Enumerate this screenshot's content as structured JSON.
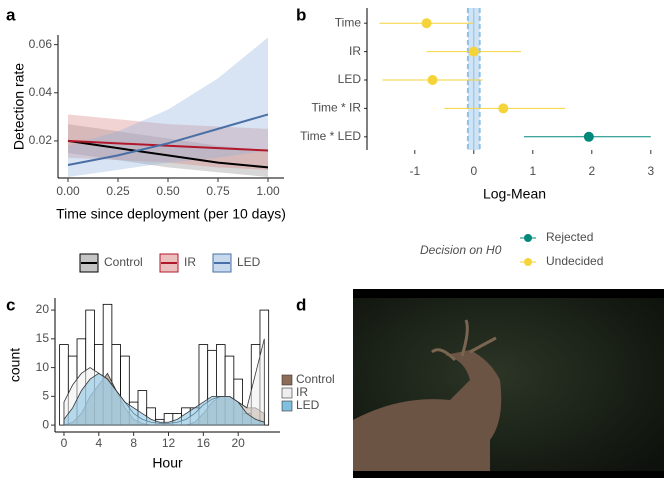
{
  "panels": [
    "a",
    "b",
    "c",
    "d"
  ],
  "chart_data": [
    {
      "type": "line",
      "xlabel": "Time since deployment (per 10 days)",
      "ylabel": "Detection rate",
      "x": [
        0,
        0.25,
        0.5,
        0.75,
        1
      ],
      "xlim": [
        -0.05,
        1.08
      ],
      "ylim": [
        0.0046,
        0.064
      ],
      "xticks": [
        {
          "value": 0,
          "label": "0.00"
        },
        {
          "value": 0.25,
          "label": "0.25"
        },
        {
          "value": 0.5,
          "label": "0.50"
        },
        {
          "value": 0.75,
          "label": "0.75"
        },
        {
          "value": 1,
          "label": "1.00"
        }
      ],
      "yticks": [
        0.02,
        0.04,
        0.06
      ],
      "series": [
        {
          "name": "Control",
          "color": "#000000",
          "fill": "#8c8c8c",
          "values": [
            0.02,
            0.017,
            0.014,
            0.011,
            0.009
          ],
          "lower": [
            0.015,
            0.012,
            0.009,
            0.007,
            0.005
          ],
          "upper": [
            0.027,
            0.024,
            0.021,
            0.018,
            0.016
          ]
        },
        {
          "name": "IR",
          "color": "#b2182b",
          "fill": "#d98080",
          "values": [
            0.02,
            0.019,
            0.018,
            0.017,
            0.016
          ],
          "lower": [
            0.013,
            0.012,
            0.011,
            0.009,
            0.008
          ],
          "upper": [
            0.031,
            0.029,
            0.027,
            0.026,
            0.025
          ]
        },
        {
          "name": "LED",
          "color": "#4a6fa5",
          "fill": "#8fb3dc",
          "values": [
            0.01,
            0.014,
            0.019,
            0.025,
            0.031
          ],
          "lower": [
            0.005,
            0.008,
            0.011,
            0.013,
            0.016
          ],
          "upper": [
            0.018,
            0.024,
            0.033,
            0.046,
            0.063
          ]
        }
      ]
    },
    {
      "type": "dotwhisker",
      "xlabel": "Log-Mean",
      "legend_title": "Decision on H0",
      "categories": [
        "Time",
        "IR",
        "LED",
        "Time * IR",
        "Time * LED"
      ],
      "values": [
        -0.8,
        0,
        -0.7,
        0.5,
        1.95
      ],
      "lower": [
        -1.6,
        -0.8,
        -1.55,
        -0.5,
        0.85
      ],
      "upper": [
        0,
        0.8,
        0.15,
        1.55,
        3.0
      ],
      "decision": [
        "Undecided",
        "Undecided",
        "Undecided",
        "Undecided",
        "Rejected"
      ],
      "series": [
        {
          "name": "Rejected",
          "color": "#00897b"
        },
        {
          "name": "Undecided",
          "color": "#f5d33a"
        }
      ],
      "ref_line": 0,
      "ref_band": [
        -0.1,
        0.1
      ],
      "xlim": [
        -1.81,
        3.19
      ],
      "xticks": [
        -1,
        0,
        1,
        2,
        3
      ]
    },
    {
      "type": "histogram",
      "xlabel": "Hour",
      "ylabel": "count",
      "bins": [
        -0.5,
        0.5,
        1.5,
        2.5,
        3.5,
        4.5,
        5.5,
        6.5,
        7.5,
        8.5,
        9.5,
        10.5,
        11.5,
        12.5,
        13.5,
        14.5,
        15.5,
        16.5,
        17.5,
        18.5,
        19.5,
        20.5,
        21.5,
        22.5,
        23.5
      ],
      "values": [
        14,
        12,
        15,
        20,
        14,
        21,
        14,
        12,
        4,
        6,
        3,
        1,
        2,
        2,
        3,
        3,
        14,
        13,
        14,
        12,
        8,
        2,
        14,
        20
      ],
      "x": [
        0,
        1,
        2,
        3,
        4,
        5,
        6,
        7,
        8,
        9,
        10,
        11,
        12,
        13,
        14,
        15,
        16,
        17,
        18,
        19,
        20,
        21,
        22,
        23
      ],
      "series": [
        {
          "name": "Control",
          "color": "#8c6d5a",
          "values": [
            0,
            0.5,
            2,
            5,
            7,
            9,
            6,
            3,
            1,
            0.3,
            0,
            0,
            0,
            0,
            0,
            0.5,
            2,
            4,
            5,
            5,
            4,
            3,
            3,
            2
          ]
        },
        {
          "name": "IR",
          "color": "#eeeeee",
          "values": [
            4,
            7,
            9,
            10,
            9,
            8,
            6,
            4,
            2,
            1,
            0.5,
            0.3,
            0.3,
            0.5,
            1,
            2,
            3.5,
            4.5,
            5,
            5,
            4,
            3,
            9,
            15
          ]
        },
        {
          "name": "LED",
          "color": "#7fbfe0",
          "values": [
            1,
            3,
            6,
            8,
            9,
            8,
            6,
            4,
            3,
            2,
            1,
            0.5,
            0.5,
            1,
            2,
            3,
            4,
            5,
            5,
            5,
            4,
            2,
            1,
            0.5
          ]
        }
      ],
      "xlim": [
        -1.03,
        24.8
      ],
      "ylim": [
        -1.2,
        22.1
      ],
      "xticks": [
        0,
        4,
        8,
        12,
        16,
        20
      ],
      "yticks": [
        0,
        5,
        10,
        15,
        20
      ]
    }
  ]
}
